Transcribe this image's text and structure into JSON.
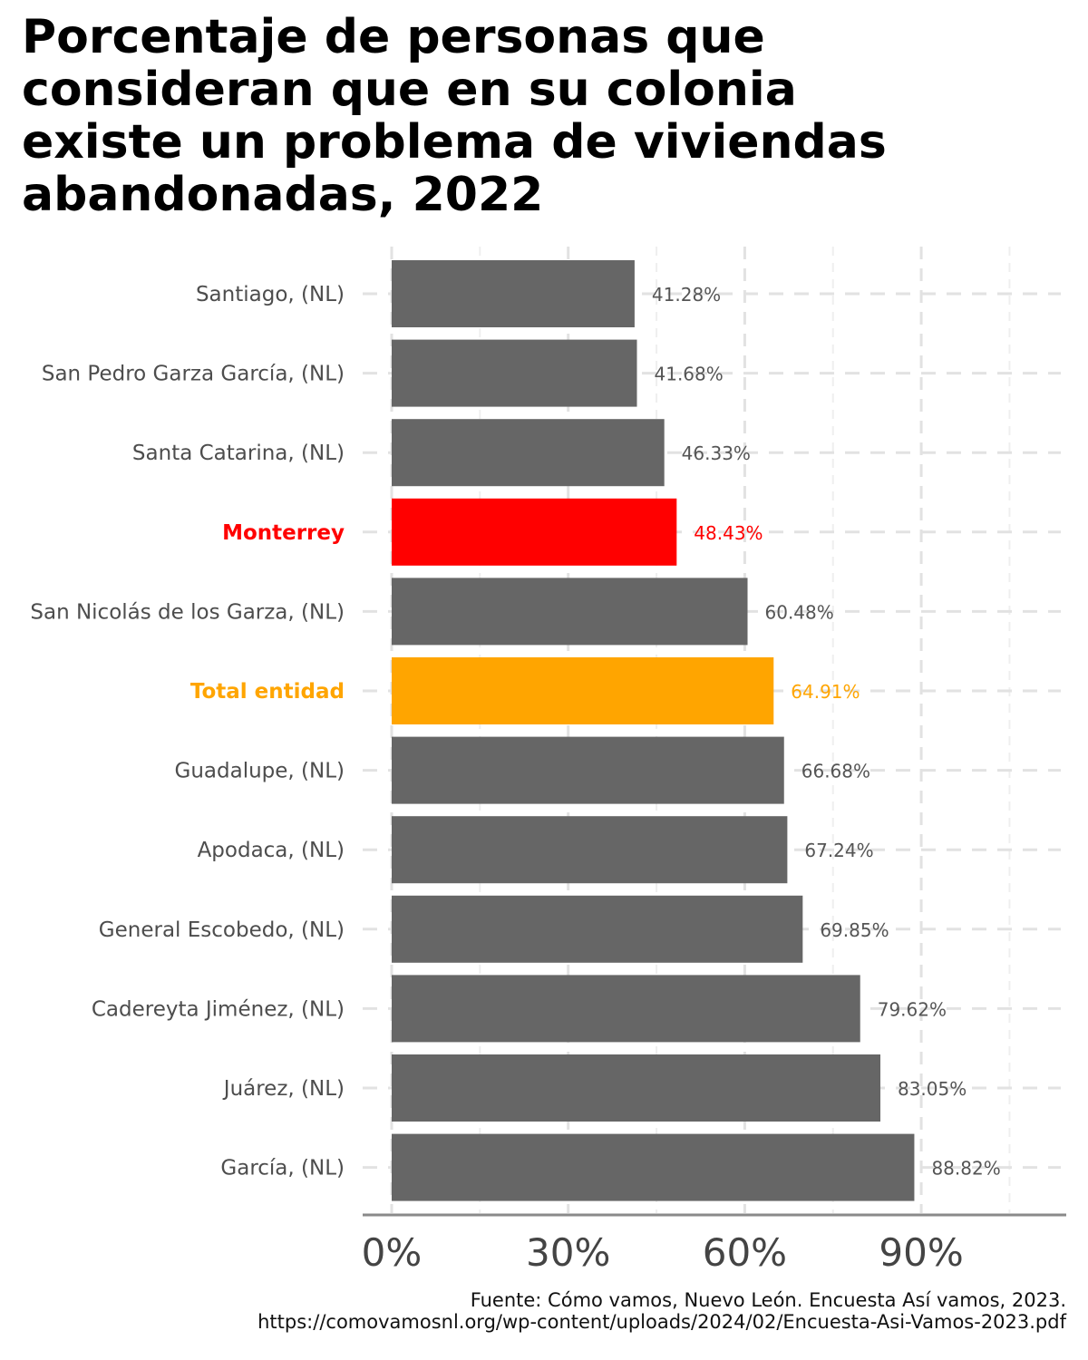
{
  "chart_data": {
    "type": "bar",
    "orientation": "horizontal",
    "title": "Porcentaje de personas que consideran que en su colonia existe un problema de viviendas abandonadas, 2022",
    "title_lines": [
      "Porcentaje de personas que",
      "consideran que en su colonia",
      "existe un problema de viviendas",
      "abandonadas, 2022"
    ],
    "categories": [
      "Santiago, (NL)",
      "San Pedro Garza García, (NL)",
      "Santa Catarina, (NL)",
      "Monterrey",
      "San Nicolás de los Garza, (NL)",
      "Total entidad",
      "Guadalupe, (NL)",
      "Apodaca, (NL)",
      "General Escobedo, (NL)",
      "Cadereyta Jiménez, (NL)",
      "Juárez, (NL)",
      "García, (NL)"
    ],
    "values": [
      41.28,
      41.68,
      46.33,
      48.43,
      60.48,
      64.91,
      66.68,
      67.24,
      69.85,
      79.62,
      83.05,
      88.82
    ],
    "value_labels": [
      "41.28%",
      "41.68%",
      "46.33%",
      "48.43%",
      "60.48%",
      "64.91%",
      "66.68%",
      "67.24%",
      "69.85%",
      "79.62%",
      "83.05%",
      "88.82%"
    ],
    "bar_colors": [
      "#666666",
      "#666666",
      "#666666",
      "#ff0000",
      "#666666",
      "#ffa500",
      "#666666",
      "#666666",
      "#666666",
      "#666666",
      "#666666",
      "#666666"
    ],
    "highlight": {
      "Monterrey": "#ff0000",
      "Total entidad": "#ffa500"
    },
    "xlim": [
      0,
      115
    ],
    "xticks": [
      0,
      30,
      60,
      90
    ],
    "xtick_labels": [
      "0%",
      "30%",
      "60%",
      "90%"
    ],
    "xlabel": "",
    "ylabel": "",
    "grid": true
  },
  "caption": {
    "line1": "Fuente: Cómo vamos, Nuevo León. Encuesta Así vamos, 2023.",
    "line2": "https://comovamosnl.org/wp-content/uploads/2024/02/Encuesta-Asi-Vamos-2023.pdf"
  }
}
